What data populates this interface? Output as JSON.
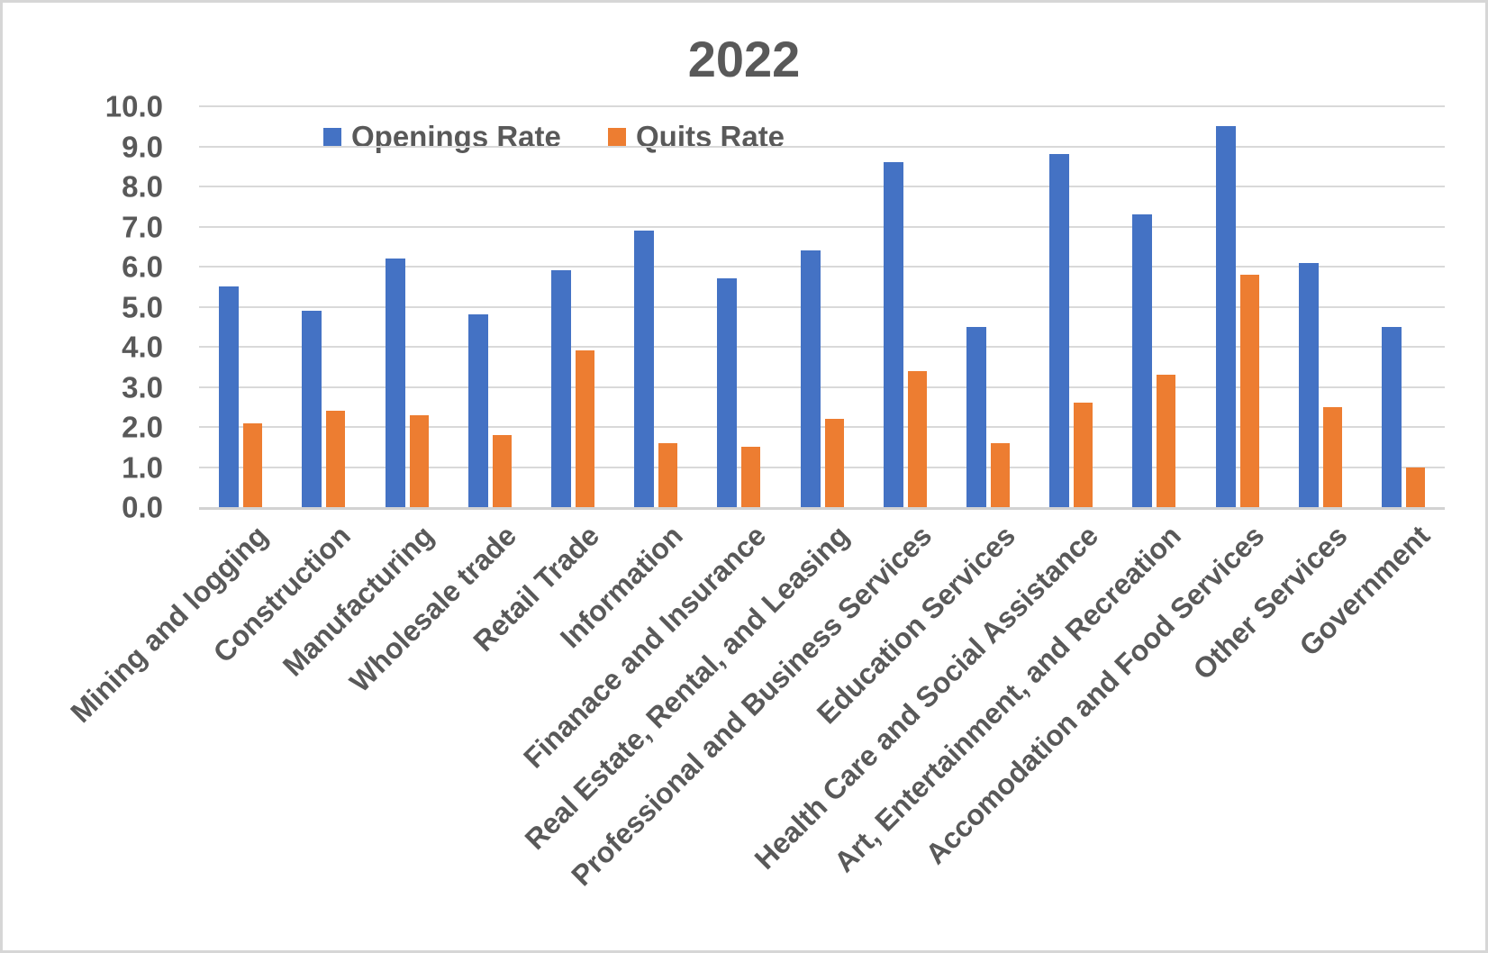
{
  "title": "2022",
  "legend": [
    {
      "label": "Openings Rate",
      "color": "#4472C4"
    },
    {
      "label": "Quits Rate",
      "color": "#ED7D31"
    }
  ],
  "y_axis": {
    "ticks": [
      "10.0",
      "9.0",
      "8.0",
      "7.0",
      "6.0",
      "5.0",
      "4.0",
      "3.0",
      "2.0",
      "1.0",
      "0.0"
    ]
  },
  "chart_data": {
    "type": "bar",
    "title": "2022",
    "categories": [
      "Mining and logging",
      "Construction",
      "Manufacturing",
      "Wholesale trade",
      "Retail Trade",
      "Information",
      "Finanace and Insurance",
      "Real Estate, Rental, and Leasing",
      "Professional and Business Services",
      "Education Services",
      "Health Care and Social Assistance",
      "Art, Entertainment, and Recreation",
      "Accomodation and Food Services",
      "Other Services",
      "Government"
    ],
    "series": [
      {
        "name": "Openings Rate",
        "color": "#4472C4",
        "values": [
          5.5,
          4.9,
          6.2,
          4.8,
          5.9,
          6.9,
          5.7,
          6.4,
          8.6,
          4.5,
          8.8,
          7.3,
          9.5,
          6.1,
          4.5
        ]
      },
      {
        "name": "Quits Rate",
        "color": "#ED7D31",
        "values": [
          2.1,
          2.4,
          2.3,
          1.8,
          3.9,
          1.6,
          1.5,
          2.2,
          3.4,
          1.6,
          2.6,
          3.3,
          5.8,
          2.5,
          1.0
        ]
      }
    ],
    "ylim": [
      0,
      10
    ],
    "grid": true,
    "legend_position": "top",
    "xlabel": "",
    "ylabel": ""
  }
}
